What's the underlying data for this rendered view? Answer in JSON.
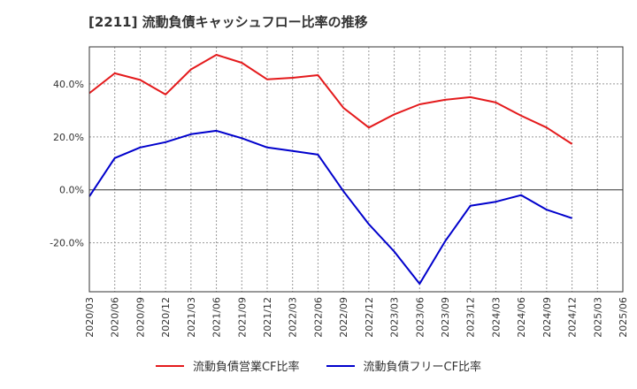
{
  "title": "[2211]  流動負債キャッシュフロー比率の推移",
  "legend": [
    {
      "label": "流動負債営業CF比率",
      "color": "#e41a1c"
    },
    {
      "label": "流動負債フリーCF比率",
      "color": "#0000cc"
    }
  ],
  "chart_data": {
    "type": "line",
    "x_ticks": [
      "2020/03",
      "2020/06",
      "2020/09",
      "2020/12",
      "2021/03",
      "2021/06",
      "2021/09",
      "2021/12",
      "2022/03",
      "2022/06",
      "2022/09",
      "2022/12",
      "2023/03",
      "2023/06",
      "2023/09",
      "2023/12",
      "2024/03",
      "2024/06",
      "2024/09",
      "2024/12",
      "2025/03",
      "2025/06"
    ],
    "y_ticks": [
      "-20.0%",
      "0.0%",
      "20.0%",
      "40.0%"
    ],
    "y_tick_values": [
      -20,
      0,
      20,
      40
    ],
    "ylim": [
      -38.5,
      54
    ],
    "grid": true,
    "legend_position": "bottom",
    "series": [
      {
        "name": "流動負債営業CF比率",
        "color": "#e41a1c",
        "values": [
          36.5,
          44.0,
          41.5,
          36.0,
          45.5,
          51.0,
          48.0,
          41.7,
          42.3,
          43.3,
          31.0,
          23.5,
          28.5,
          32.3,
          34.0,
          35.0,
          33.0,
          28.0,
          23.5,
          17.3
        ]
      },
      {
        "name": "流動負債フリーCF比率",
        "color": "#0000cc",
        "values": [
          -2.5,
          12.0,
          16.0,
          18.0,
          21.0,
          22.3,
          19.5,
          16.0,
          14.7,
          13.3,
          -0.5,
          -13.0,
          -23.3,
          -35.5,
          -19.5,
          -6.0,
          -4.5,
          -2.0,
          -7.5,
          -10.7
        ]
      }
    ]
  }
}
